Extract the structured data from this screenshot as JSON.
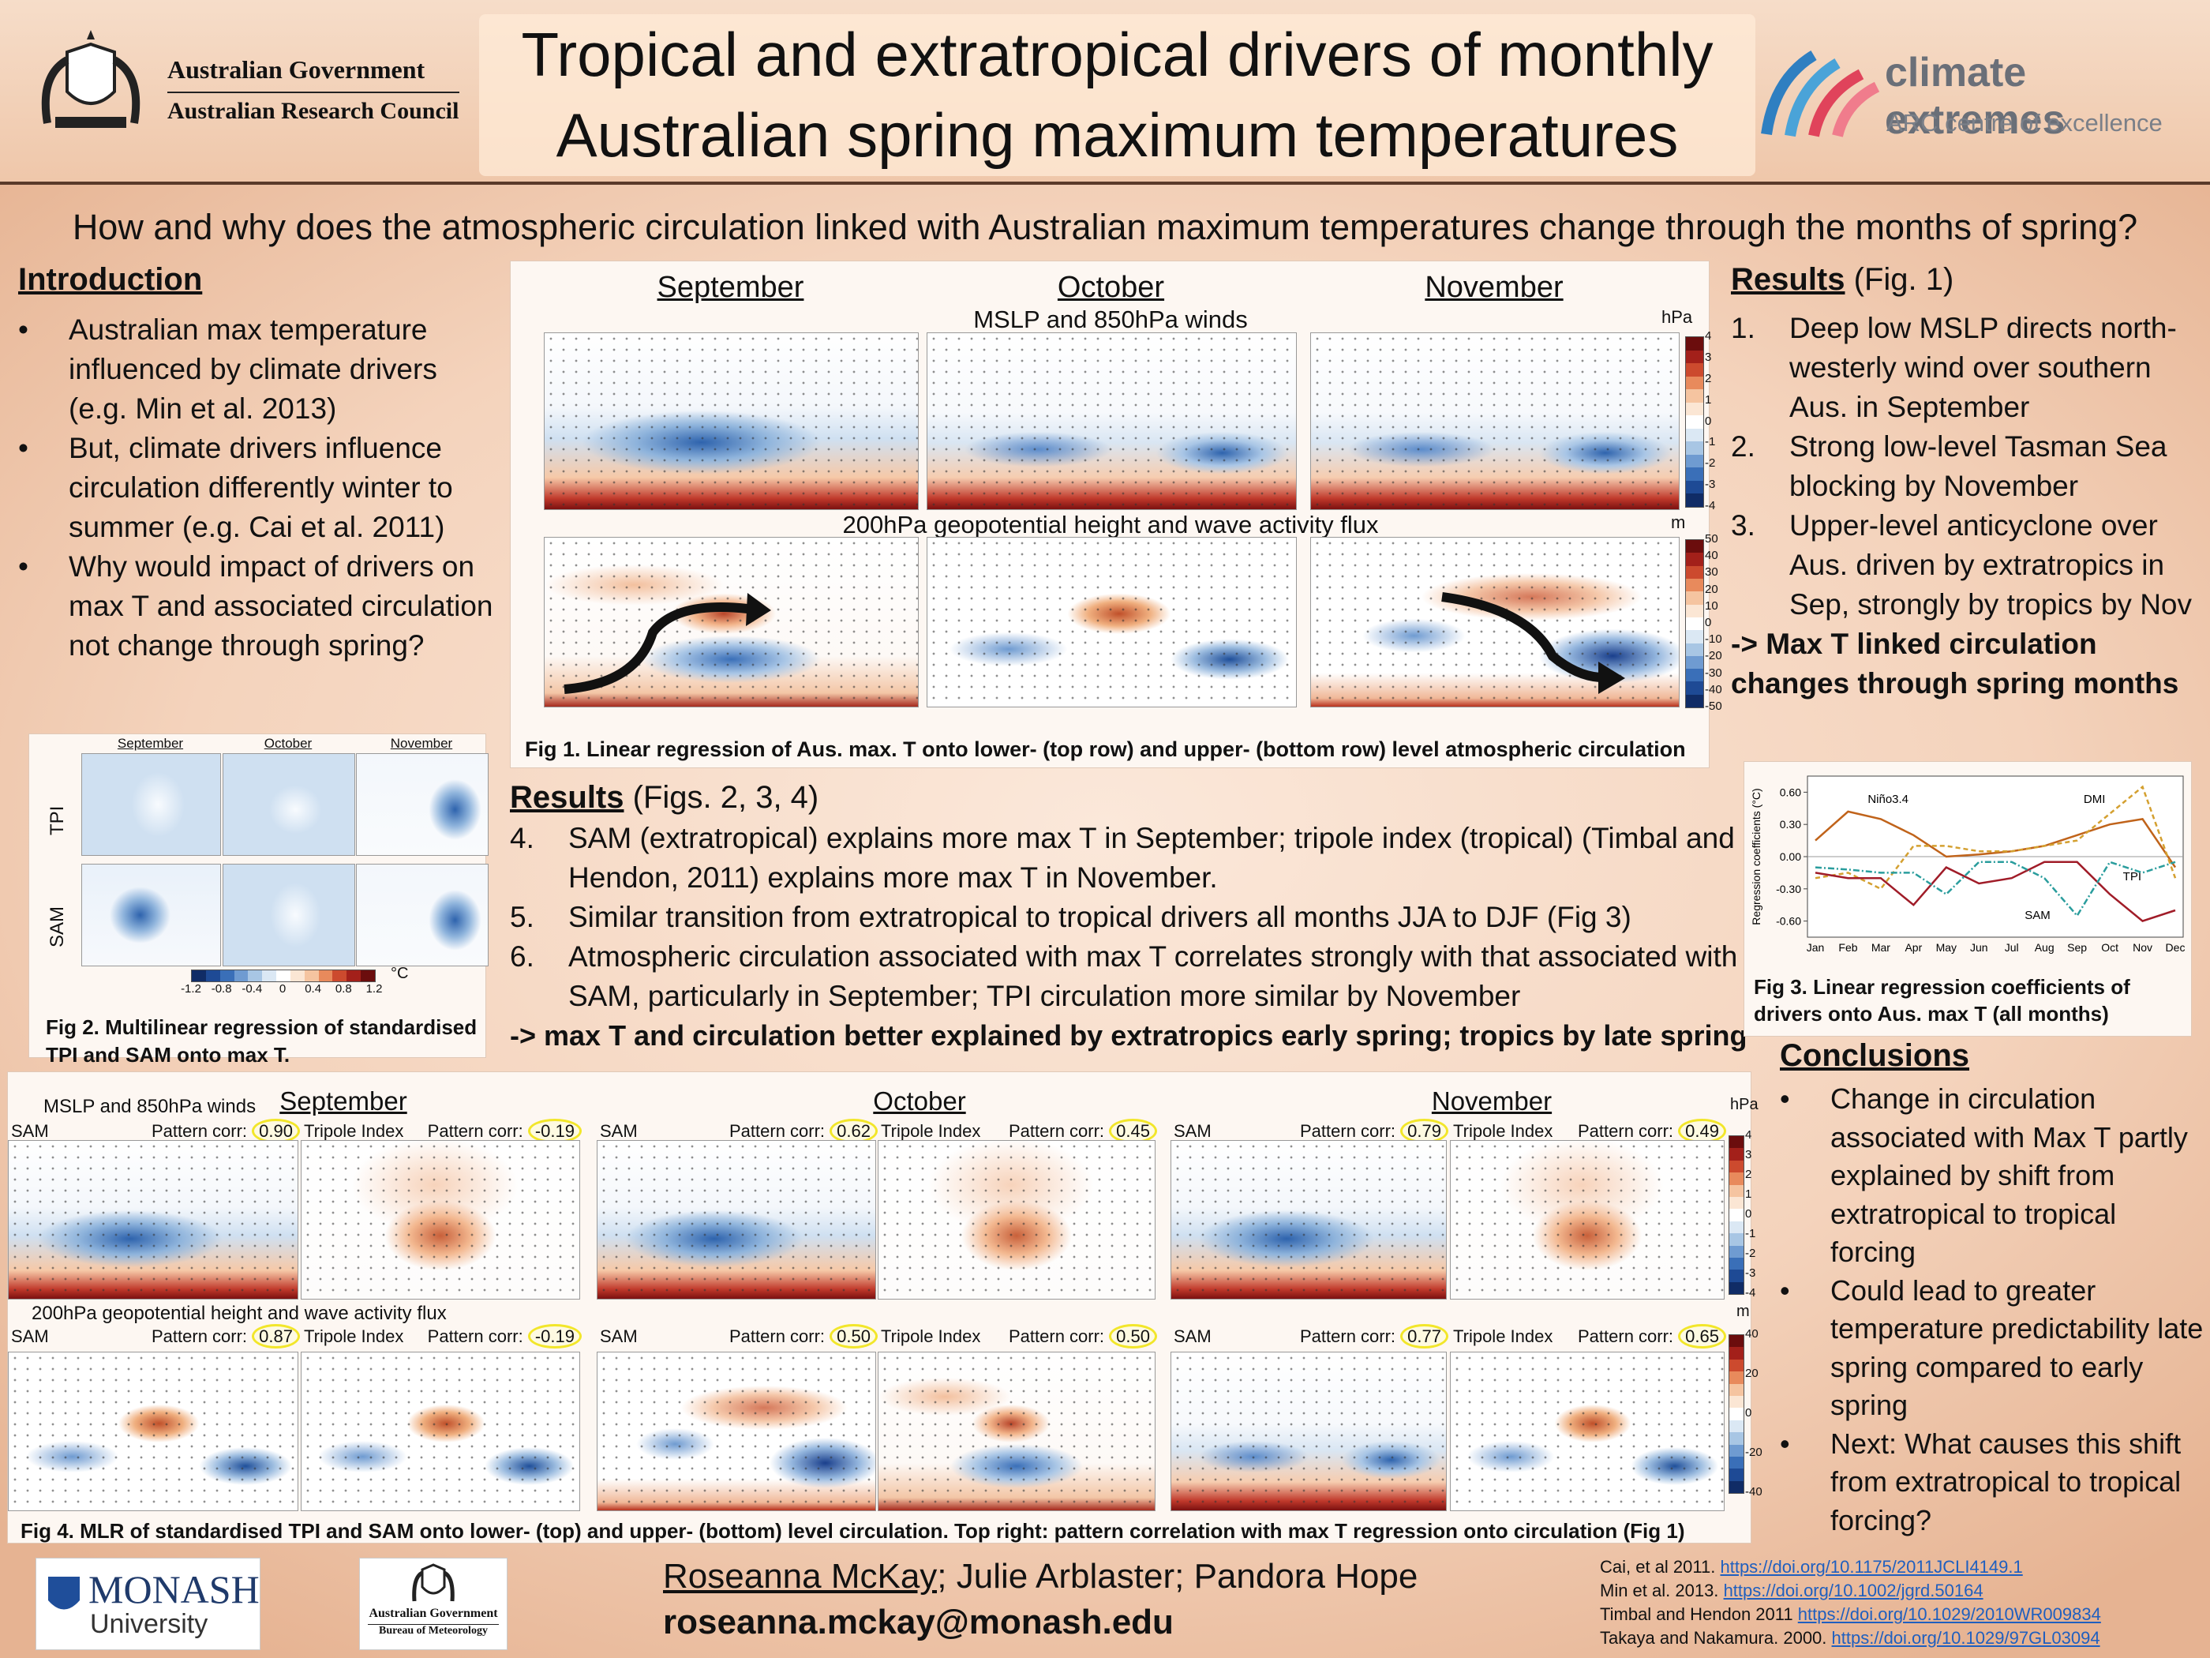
{
  "header": {
    "title_line1": "Tropical and extratropical drivers of monthly",
    "title_line2": "Australian spring maximum temperatures",
    "gov_line1": "Australian Government",
    "gov_line2": "Australian Research Council",
    "ce_name": "climate extremes",
    "ce_sub": "ARC centre of excellence"
  },
  "question": "How and why does the atmospheric circulation linked with Australian maximum temperatures change through the months of spring?",
  "introduction": {
    "heading": "Introduction",
    "bullets": [
      "Australian max temperature influenced by climate drivers (e.g. Min et al. 2013)",
      "But, climate drivers influence circulation differently winter to summer (e.g. Cai et al. 2011)",
      "Why would impact of drivers on max T and associated circulation not change through spring?"
    ]
  },
  "fig1": {
    "months": [
      "September",
      "October",
      "November"
    ],
    "row1_label": "MSLP and 850hPa winds",
    "row2_label": "200hPa geopotential height and wave activity flux",
    "unit1": "hPa",
    "unit2": "m",
    "cbar1": [
      "4",
      "3",
      "2",
      "1",
      "0",
      "-1",
      "-2",
      "-3",
      "-4"
    ],
    "cbar2": [
      "50",
      "40",
      "30",
      "20",
      "10",
      "0",
      "-10",
      "-20",
      "-30",
      "-40",
      "-50"
    ],
    "caption": "Fig 1. Linear regression of Aus. max. T onto lower- (top row) and upper- (bottom row) level atmospheric circulation"
  },
  "results1": {
    "heading": "Results",
    "ref": "(Fig. 1)",
    "items": [
      {
        "num": "1.",
        "text": "Deep low MSLP directs north-westerly wind over southern Aus. in September"
      },
      {
        "num": "2.",
        "text": "Strong low-level Tasman Sea blocking by November"
      },
      {
        "num": "3.",
        "text": "Upper-level anticyclone over Aus. driven by extratropics in Sep, strongly by tropics by Nov"
      }
    ],
    "conclusion": "-> Max T linked circulation changes through spring months"
  },
  "fig2": {
    "months": [
      "September",
      "October",
      "November"
    ],
    "rows": [
      "TPI",
      "SAM"
    ],
    "cbar": [
      "-1.2",
      "-0.8",
      "-0.4",
      "0",
      "0.4",
      "0.8",
      "1.2"
    ],
    "unit": "°C",
    "caption": "Fig 2. Multilinear regression of standardised TPI and SAM onto max T."
  },
  "results2": {
    "heading": "Results",
    "ref": "(Figs. 2, 3, 4)",
    "items": [
      {
        "num": "4.",
        "text": "SAM (extratropical) explains more max T in September; tripole index (tropical) (Timbal and Hendon, 2011) explains more max T in November."
      },
      {
        "num": "5.",
        "text": "Similar transition from extratropical to tropical drivers all months JJA to DJF (Fig 3)"
      },
      {
        "num": "6.",
        "text": "Atmospheric circulation associated with max T correlates strongly with that associated with SAM, particularly in September; TPI circulation more similar by November"
      }
    ],
    "conclusion": "-> max T and circulation better explained by extratropics early spring; tropics by late spring"
  },
  "chart_data": {
    "type": "line",
    "y_label": "Regression coefficients (°C)",
    "categories": [
      "Jan",
      "Feb",
      "Mar",
      "Apr",
      "May",
      "Jun",
      "Jul",
      "Aug",
      "Sep",
      "Oct",
      "Nov",
      "Dec"
    ],
    "series": [
      {
        "name": "Niño3.4",
        "color": "#c0631a",
        "line_style": "solid",
        "values": [
          0.15,
          0.42,
          0.35,
          0.2,
          0.0,
          0.02,
          0.05,
          0.1,
          0.2,
          0.3,
          0.35,
          -0.1
        ]
      },
      {
        "name": "DMI",
        "color": "#d4a030",
        "line_style": "dashed",
        "values": [
          -0.2,
          -0.15,
          -0.3,
          0.1,
          0.1,
          0.05,
          0.05,
          0.1,
          0.15,
          0.4,
          0.65,
          -0.2
        ]
      },
      {
        "name": "TPI",
        "color": "#a01c28",
        "line_style": "solid",
        "values": [
          -0.15,
          -0.2,
          -0.2,
          -0.45,
          -0.1,
          -0.25,
          -0.2,
          -0.05,
          -0.05,
          -0.35,
          -0.6,
          -0.5
        ]
      },
      {
        "name": "SAM",
        "color": "#2a9d9d",
        "line_style": "dashdot",
        "values": [
          -0.1,
          -0.12,
          -0.15,
          -0.15,
          -0.35,
          -0.05,
          -0.05,
          -0.2,
          -0.55,
          -0.05,
          -0.15,
          -0.05
        ]
      }
    ],
    "ylim": [
      -0.75,
      0.75
    ],
    "yticks": [
      {
        "value": 0.6,
        "label": "0.60"
      },
      {
        "value": 0.3,
        "label": "0.30"
      },
      {
        "value": 0,
        "label": "0.00"
      },
      {
        "value": -0.3,
        "label": "-0.30"
      },
      {
        "value": -0.6,
        "label": "-0.60"
      }
    ]
  },
  "fig3": {
    "caption": "Fig 3. Linear regression coefficients of drivers onto Aus. max T (all months)"
  },
  "fig4": {
    "months": [
      "September",
      "October",
      "November"
    ],
    "row1_label": "MSLP and 850hPa winds",
    "row2_label": "200hPa geopotential height and wave activity flux",
    "corr_label": "Pattern corr:",
    "top": [
      {
        "name": "SAM",
        "corr": "0.90"
      },
      {
        "name": "Tripole Index",
        "corr": "-0.19"
      },
      {
        "name": "SAM",
        "corr": "0.62"
      },
      {
        "name": "Tripole Index",
        "corr": "0.45"
      },
      {
        "name": "SAM",
        "corr": "0.79"
      },
      {
        "name": "Tripole Index",
        "corr": "0.49"
      }
    ],
    "bottom": [
      {
        "name": "SAM",
        "corr": "0.87"
      },
      {
        "name": "Tripole Index",
        "corr": "-0.19"
      },
      {
        "name": "SAM",
        "corr": "0.50"
      },
      {
        "name": "Tripole Index",
        "corr": "0.50"
      },
      {
        "name": "SAM",
        "corr": "0.77"
      },
      {
        "name": "Tripole Index",
        "corr": "0.65"
      }
    ],
    "unit1": "hPa",
    "unit2": "m",
    "cbar1": [
      "4",
      "3",
      "2",
      "1",
      "0",
      "-1",
      "-2",
      "-3",
      "-4"
    ],
    "cbar2": [
      "40",
      "20",
      "0",
      "-20",
      "-40"
    ],
    "caption": "Fig 4. MLR of standardised TPI and SAM onto lower- (top) and upper- (bottom) level circulation. Top right: pattern correlation with max T regression onto circulation (Fig 1)"
  },
  "conclusions": {
    "heading": "Conclusions",
    "bullets": [
      "Change in circulation associated with Max T partly explained by shift from extratropical to tropical forcing",
      "Could lead to greater temperature predictability late spring compared to early spring",
      "Next: What causes this shift from extratropical to tropical forcing?"
    ]
  },
  "footer": {
    "monash": "MONASH",
    "monash_sub": "University",
    "bom1": "Australian Government",
    "bom2": "Bureau of Meteorology",
    "author_main": "Roseanna McKay;",
    "author_rest": "Julie Arblaster; Pandora Hope",
    "email": "roseanna.mckay@monash.edu",
    "refs": [
      {
        "text": "Cai, et al 2011.",
        "link": "https://doi.org/10.1175/2011JCLI4149.1"
      },
      {
        "text": "Min et al. 2013.",
        "link": "https://doi.org/10.1002/jgrd.50164"
      },
      {
        "text": "Timbal and Hendon 2011",
        "link": "https://doi.org/10.1029/2010WR009834"
      },
      {
        "text": "Takaya and Nakamura. 2000.",
        "link": "https://doi.org/10.1029/97GL03094"
      }
    ]
  }
}
